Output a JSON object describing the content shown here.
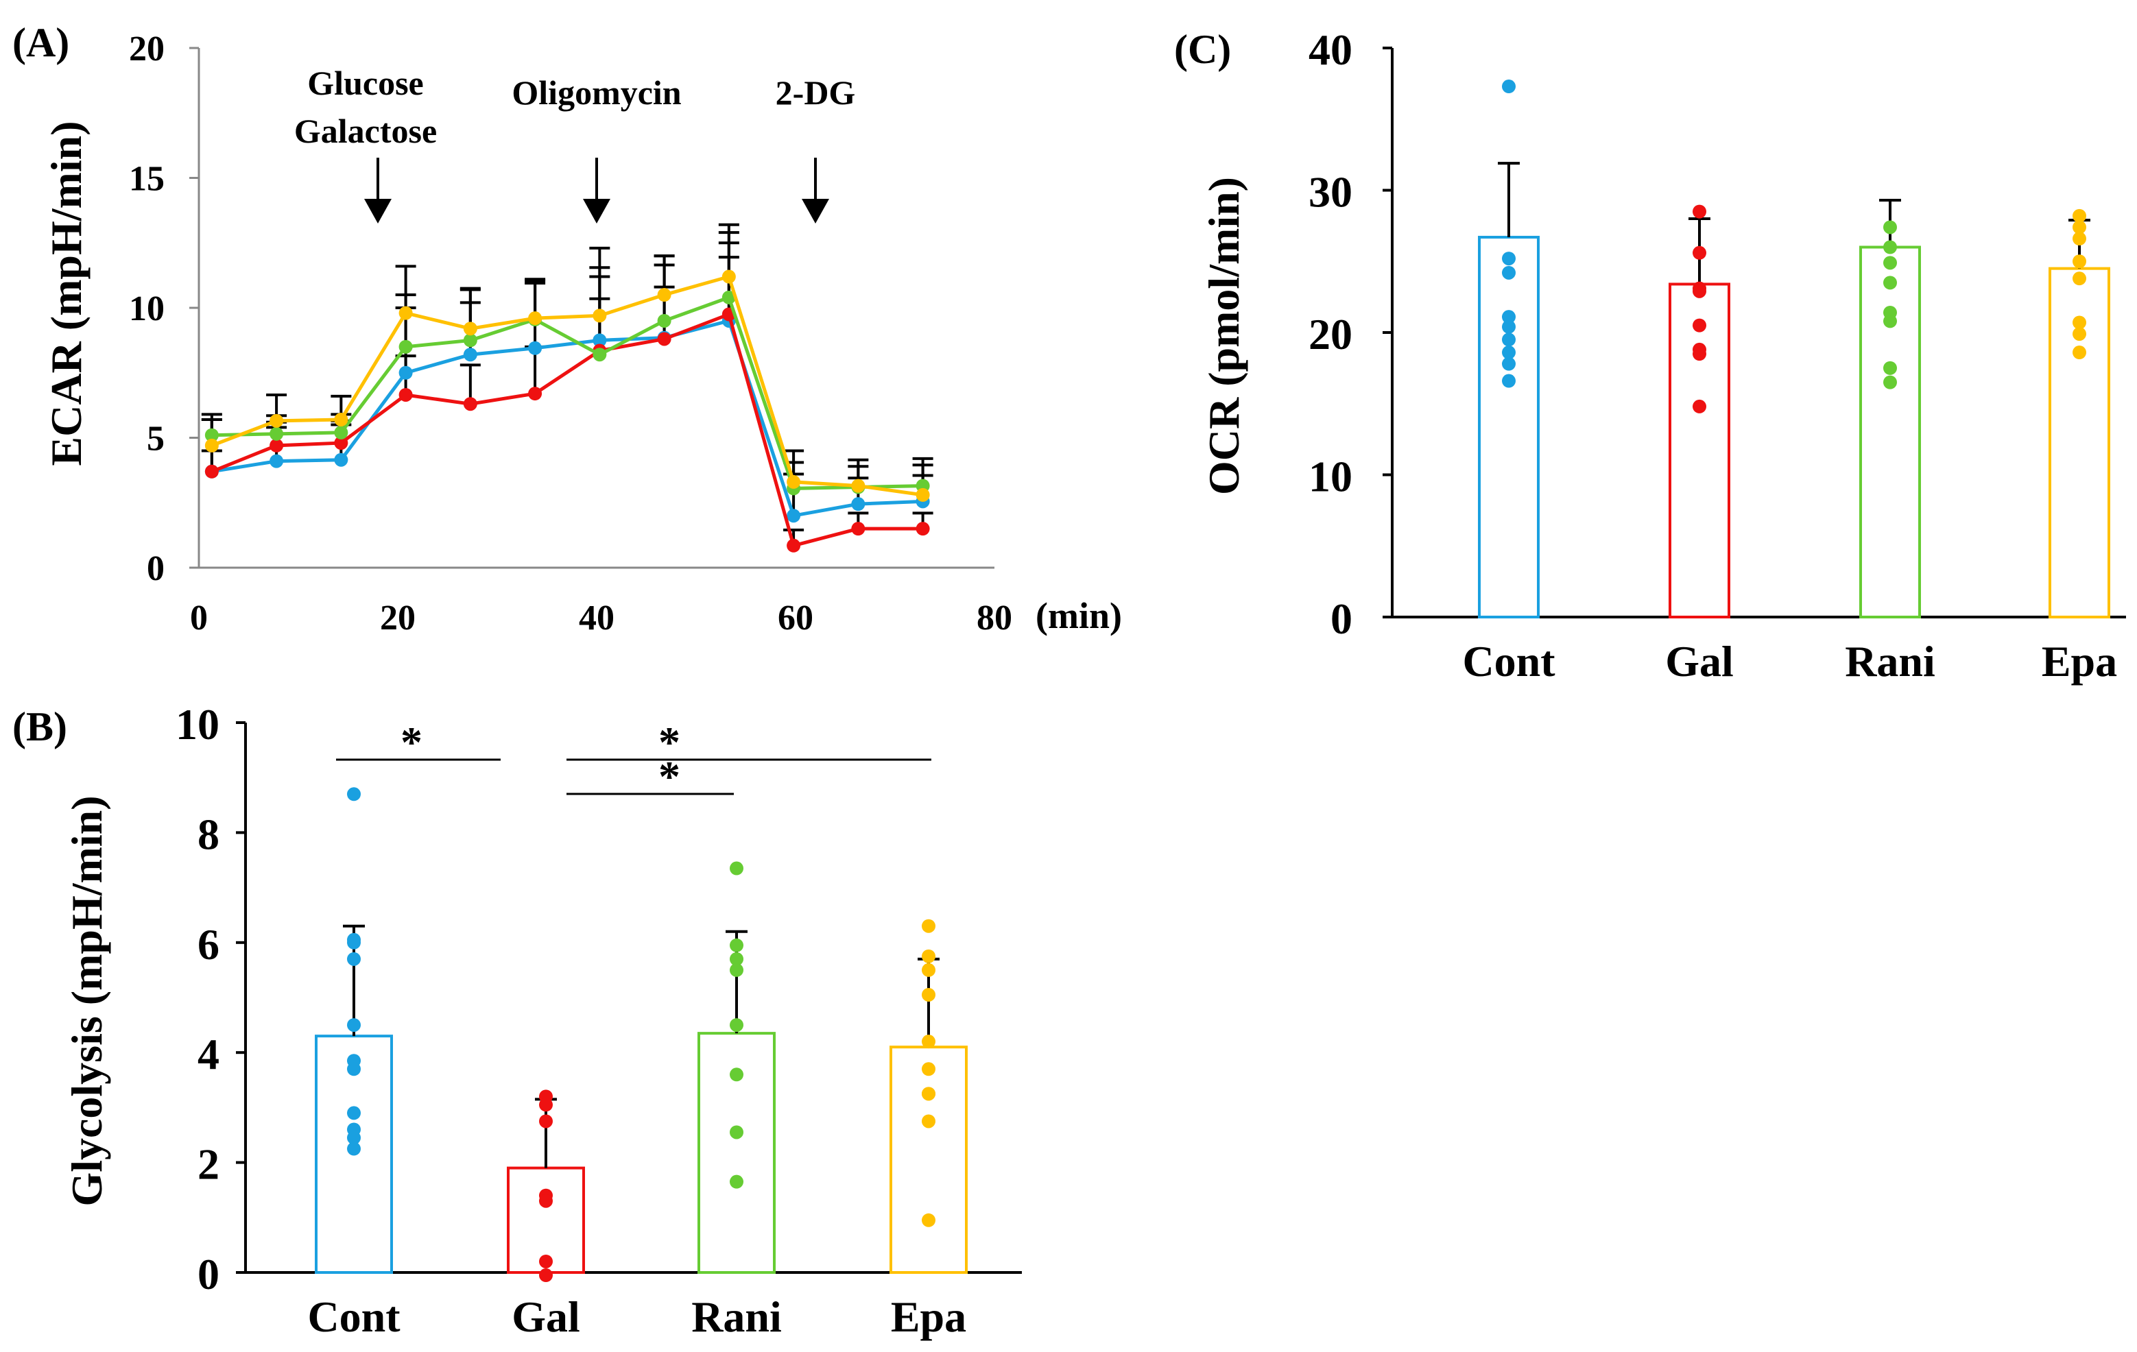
{
  "colors": {
    "Cont": "#1aa0e0",
    "Gal": "#ee1111",
    "Rani": "#66cc33",
    "Epa": "#ffc000"
  },
  "chart_data": [
    {
      "panel": "(A)",
      "type": "line",
      "ylabel": "ECAR (mpH/min)",
      "xlabel": "",
      "x_unit": "(min)",
      "xlim": [
        0,
        80
      ],
      "ylim": [
        0,
        20
      ],
      "xticks": [
        "0",
        "20",
        "40",
        "60",
        "80"
      ],
      "yticks": [
        "0",
        "5",
        "10",
        "15",
        "20"
      ],
      "x": [
        1.3,
        7.8,
        14.3,
        20.8,
        27.3,
        33.8,
        40.3,
        46.8,
        53.3,
        59.8,
        66.3,
        72.8
      ],
      "annotations": [
        {
          "lines": [
            "Glucose",
            "Galactose"
          ],
          "x": 18
        },
        {
          "lines": [
            "Oligomycin"
          ],
          "x": 40
        },
        {
          "lines": [
            "2-DG"
          ],
          "x": 62
        }
      ],
      "series": [
        {
          "name": "Cont",
          "values": [
            3.7,
            4.1,
            4.15,
            7.5,
            8.2,
            8.45,
            8.75,
            8.85,
            9.5,
            2.0,
            2.45,
            2.55
          ],
          "err": [
            2.0,
            1.5,
            1.5,
            2.5,
            2.0,
            2.5,
            2.8,
            2.8,
            3.0,
            1.6,
            1.0,
            1.0
          ]
        },
        {
          "name": "Gal",
          "values": [
            3.7,
            4.7,
            4.8,
            6.65,
            6.3,
            6.7,
            8.35,
            8.8,
            9.75,
            0.85,
            1.5,
            1.5
          ],
          "err": [
            0.8,
            0.7,
            0.7,
            1.5,
            1.5,
            1.8,
            2.0,
            2.0,
            2.2,
            0.6,
            0.6,
            0.6
          ]
        },
        {
          "name": "Rani",
          "values": [
            5.1,
            5.15,
            5.2,
            8.5,
            8.75,
            9.55,
            8.2,
            9.5,
            10.4,
            3.05,
            3.1,
            3.15
          ],
          "err": [
            0.8,
            0.7,
            0.7,
            2.0,
            2.0,
            1.5,
            3.0,
            2.5,
            2.5,
            1.0,
            0.8,
            0.8
          ]
        },
        {
          "name": "Epa",
          "values": [
            4.7,
            5.65,
            5.7,
            9.8,
            9.2,
            9.6,
            9.7,
            10.5,
            11.2,
            3.3,
            3.15,
            2.8
          ],
          "err": [
            1.0,
            1.0,
            0.9,
            1.8,
            1.5,
            1.5,
            2.6,
            1.5,
            2.0,
            1.2,
            1.0,
            1.4
          ]
        }
      ]
    },
    {
      "panel": "(B)",
      "type": "bar",
      "ylabel": "Glycolysis (mpH/min)",
      "categories": [
        "Cont",
        "Gal",
        "Rani",
        "Epa"
      ],
      "values": [
        4.3,
        1.9,
        4.35,
        4.1
      ],
      "err": [
        2.0,
        1.25,
        1.85,
        1.6
      ],
      "ylim": [
        0,
        10
      ],
      "yticks": [
        "0",
        "2",
        "4",
        "6",
        "8",
        "10"
      ],
      "points": [
        [
          8.7,
          6.05,
          6.0,
          5.7,
          4.5,
          3.85,
          3.7,
          2.9,
          2.6,
          2.45,
          2.25
        ],
        [
          3.2,
          3.05,
          2.75,
          1.4,
          1.3,
          0.2,
          -0.05
        ],
        [
          7.35,
          5.95,
          5.7,
          5.5,
          4.5,
          3.6,
          2.55,
          1.65
        ],
        [
          6.3,
          5.75,
          5.5,
          5.05,
          4.2,
          3.7,
          3.25,
          3.25,
          2.75,
          0.95
        ]
      ],
      "significance": [
        {
          "from": "Cont",
          "to": "Gal",
          "label": "*"
        },
        {
          "from": "Gal",
          "to": "Epa",
          "label": "*"
        },
        {
          "from": "Gal",
          "to": "Rani",
          "label": "*"
        }
      ]
    },
    {
      "panel": "(C)",
      "type": "bar",
      "ylabel": "OCR (pmol/min)",
      "categories": [
        "Cont",
        "Gal",
        "Rani",
        "Epa"
      ],
      "values": [
        26.7,
        23.4,
        26.0,
        24.5
      ],
      "err": [
        5.2,
        4.6,
        3.3,
        3.4
      ],
      "ylim": [
        0,
        40
      ],
      "yticks": [
        "0",
        "10",
        "20",
        "30",
        "40"
      ],
      "points": [
        [
          37.3,
          25.2,
          24.2,
          21.1,
          20.4,
          19.5,
          18.6,
          17.8,
          16.6
        ],
        [
          28.5,
          25.6,
          23.1,
          22.9,
          20.5,
          18.8,
          18.5,
          14.8
        ],
        [
          27.4,
          26.0,
          24.9,
          23.5,
          21.4,
          20.8,
          17.5,
          16.5
        ],
        [
          28.2,
          27.4,
          26.6,
          25.0,
          23.8,
          20.7,
          19.9,
          18.6
        ]
      ]
    }
  ]
}
